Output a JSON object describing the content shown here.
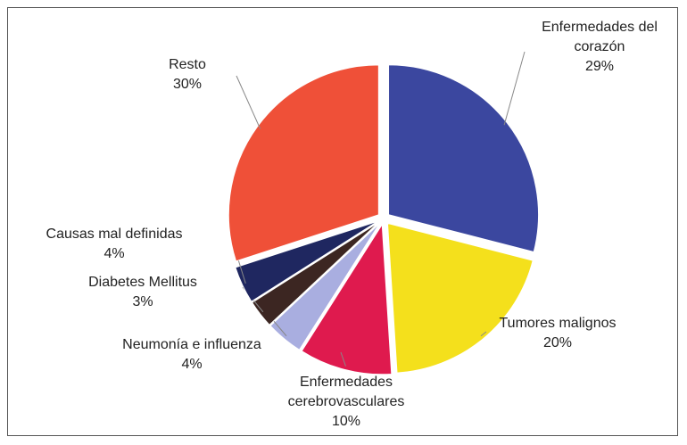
{
  "chart_data": {
    "type": "pie",
    "categories": [
      "Enfermedades del corazón",
      "Tumores malignos",
      "Enfermedades cerebrovasculares",
      "Neumonía e influenza",
      "Diabetes Mellitus",
      "Causas mal definidas",
      "Resto"
    ],
    "values": [
      29,
      20,
      10,
      4,
      3,
      4,
      30
    ],
    "value_labels": [
      "29%",
      "20%",
      "10%",
      "4%",
      "3%",
      "4%",
      "30%"
    ],
    "colors": [
      "#3b479f",
      "#f4e01c",
      "#df1a4e",
      "#a9aee0",
      "#3c2622",
      "#1f2760",
      "#ef5038"
    ]
  }
}
